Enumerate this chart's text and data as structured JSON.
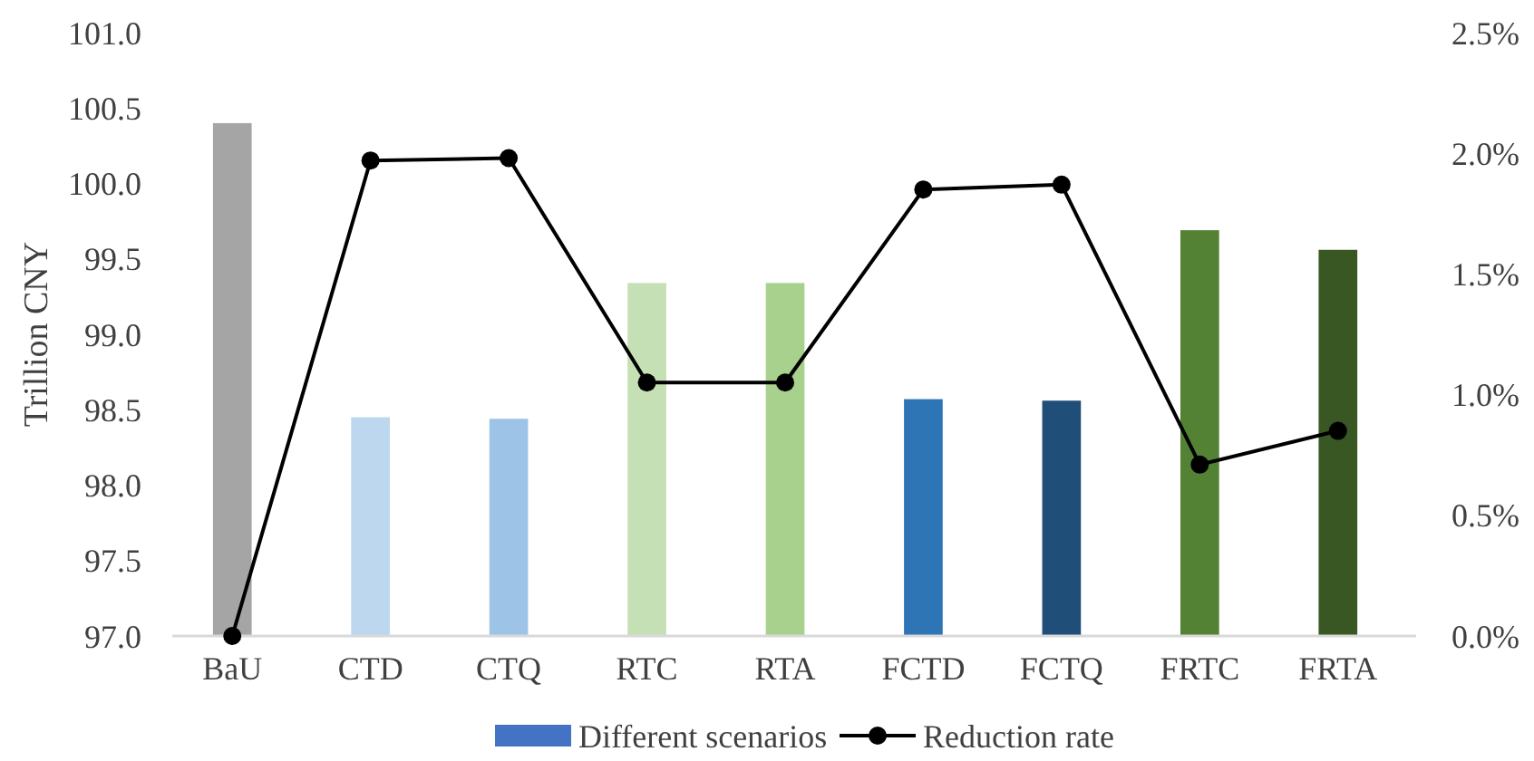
{
  "chart_data": {
    "type": "bar",
    "ylabel": "Trillion CNY",
    "categories": [
      "BaU",
      "CTD",
      "CTQ",
      "RTC",
      "RTA",
      "FCTD",
      "FCTQ",
      "FRTC",
      "FRTA"
    ],
    "series": [
      {
        "name": "Different scenarios",
        "color": "#4472c4",
        "colors": [
          "#a5a5a5",
          "#bdd7ee",
          "#9dc3e6",
          "#c5e0b4",
          "#a9d18e",
          "#2e75b6",
          "#1f4e79",
          "#548235",
          "#385723"
        ],
        "values": [
          100.4,
          98.45,
          98.44,
          99.34,
          99.34,
          98.57,
          98.56,
          99.69,
          99.56
        ]
      },
      {
        "name": "Reduction rate",
        "type": "line",
        "axis": "y2",
        "color": "#000000",
        "marker": "circle",
        "values": [
          0,
          1.97,
          1.98,
          1.05,
          1.05,
          1.85,
          1.87,
          0.71,
          0.85
        ]
      }
    ],
    "ylim": [
      97,
      101
    ],
    "yticks": [
      {
        "value": 97,
        "label": "97.0"
      },
      {
        "value": 97.5,
        "label": "97.5"
      },
      {
        "value": 98,
        "label": "98.0"
      },
      {
        "value": 98.5,
        "label": "98.5"
      },
      {
        "value": 99,
        "label": "99.0"
      },
      {
        "value": 99.5,
        "label": "99.5"
      },
      {
        "value": 100,
        "label": "100.0"
      },
      {
        "value": 100.5,
        "label": "100.5"
      },
      {
        "value": 101,
        "label": "101.0"
      }
    ],
    "y2lim": [
      0,
      2.5
    ],
    "y2ticks": [
      {
        "value": 0,
        "label": "0.0%"
      },
      {
        "value": 0.5,
        "label": "0.5%"
      },
      {
        "value": 1,
        "label": "1.0%"
      },
      {
        "value": 1.5,
        "label": "1.5%"
      },
      {
        "value": 2,
        "label": "2.0%"
      },
      {
        "value": 2.5,
        "label": "2.5%"
      }
    ],
    "grid": false,
    "legend": "bottom"
  }
}
